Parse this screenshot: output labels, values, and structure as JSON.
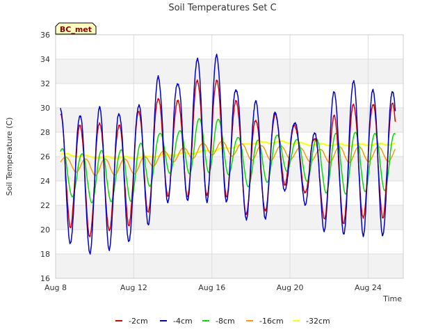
{
  "chart_data": {
    "type": "line",
    "title": "Soil Temperatures Set C",
    "xlabel": "Time",
    "ylabel": "Soil Temperature (C)",
    "station_label": "BC_met",
    "xlim": [
      8.0,
      25.8
    ],
    "ylim": [
      16,
      36
    ],
    "yticks": [
      16,
      18,
      20,
      22,
      24,
      26,
      28,
      30,
      32,
      34,
      36
    ],
    "xticks": [
      {
        "value": 8,
        "label": "Aug 8"
      },
      {
        "value": 12,
        "label": "Aug 12"
      },
      {
        "value": 16,
        "label": "Aug 16"
      },
      {
        "value": 20,
        "label": "Aug 20"
      },
      {
        "value": 24,
        "label": "Aug 24"
      }
    ],
    "x_start": 8.25,
    "x_end": 25.4,
    "grid": true,
    "legend_position": "bottom",
    "series": [
      {
        "name": "-2cm",
        "color": "#dd0000",
        "daily_max": [
          29.5,
          28.5,
          28.8,
          28.5,
          29.7,
          30.8,
          30.5,
          32.3,
          32.3,
          30.5,
          29.0,
          29.5,
          28.5,
          27.5,
          29.3,
          30.3,
          30.3
        ],
        "daily_min": [
          21.0,
          19.5,
          19.3,
          20.5,
          20.3,
          22.5,
          23.0,
          22.5,
          23.0,
          22.5,
          20.0,
          23.0,
          24.5,
          21.5,
          20.3,
          20.8,
          21.0
        ]
      },
      {
        "name": "-4cm",
        "color": "#0000cc",
        "daily_max": [
          29.9,
          29.4,
          30.0,
          29.5,
          30.2,
          32.5,
          32.0,
          34.0,
          34.3,
          31.5,
          30.5,
          29.6,
          28.8,
          27.8,
          31.4,
          32.2,
          31.4
        ],
        "daily_min": [
          19.3,
          18.3,
          17.8,
          19.0,
          18.9,
          22.0,
          22.5,
          22.2,
          22.5,
          22.0,
          19.7,
          22.3,
          24.0,
          20.3,
          19.5,
          19.6,
          19.5
        ]
      },
      {
        "name": "-8cm",
        "color": "#00dd00",
        "daily_max": [
          26.7,
          26.2,
          26.5,
          26.5,
          27.0,
          27.9,
          28.0,
          29.1,
          29.2,
          27.6,
          27.3,
          27.8,
          27.4,
          27.4,
          27.9,
          28.0,
          27.9
        ],
        "daily_min": [
          23.0,
          22.5,
          22.0,
          22.5,
          22.2,
          24.5,
          24.7,
          24.5,
          24.8,
          24.3,
          23.0,
          24.5,
          25.0,
          23.3,
          22.8,
          23.0,
          23.2
        ]
      },
      {
        "name": "-16cm",
        "color": "#ff9900",
        "daily_max": [
          26.0,
          25.8,
          25.8,
          25.8,
          25.8,
          26.4,
          26.6,
          27.0,
          27.3,
          27.1,
          26.9,
          26.9,
          26.8,
          26.5,
          26.8,
          26.8,
          26.8
        ],
        "daily_min": [
          25.2,
          24.6,
          24.4,
          24.5,
          24.6,
          25.4,
          25.6,
          25.9,
          26.2,
          26.0,
          25.6,
          25.7,
          25.8,
          25.5,
          25.5,
          25.5,
          25.6
        ]
      },
      {
        "name": "-32cm",
        "color": "#ffff00",
        "trend": [
          [
            8.25,
            26.2
          ],
          [
            10,
            25.95
          ],
          [
            12,
            25.9
          ],
          [
            13.5,
            26.1
          ],
          [
            15,
            26.3
          ],
          [
            16.5,
            26.6
          ],
          [
            18,
            27.1
          ],
          [
            19.5,
            27.2
          ],
          [
            21,
            27.0
          ],
          [
            23,
            26.95
          ],
          [
            25.4,
            27.05
          ]
        ],
        "daily_amplitude": 0.08
      }
    ]
  }
}
